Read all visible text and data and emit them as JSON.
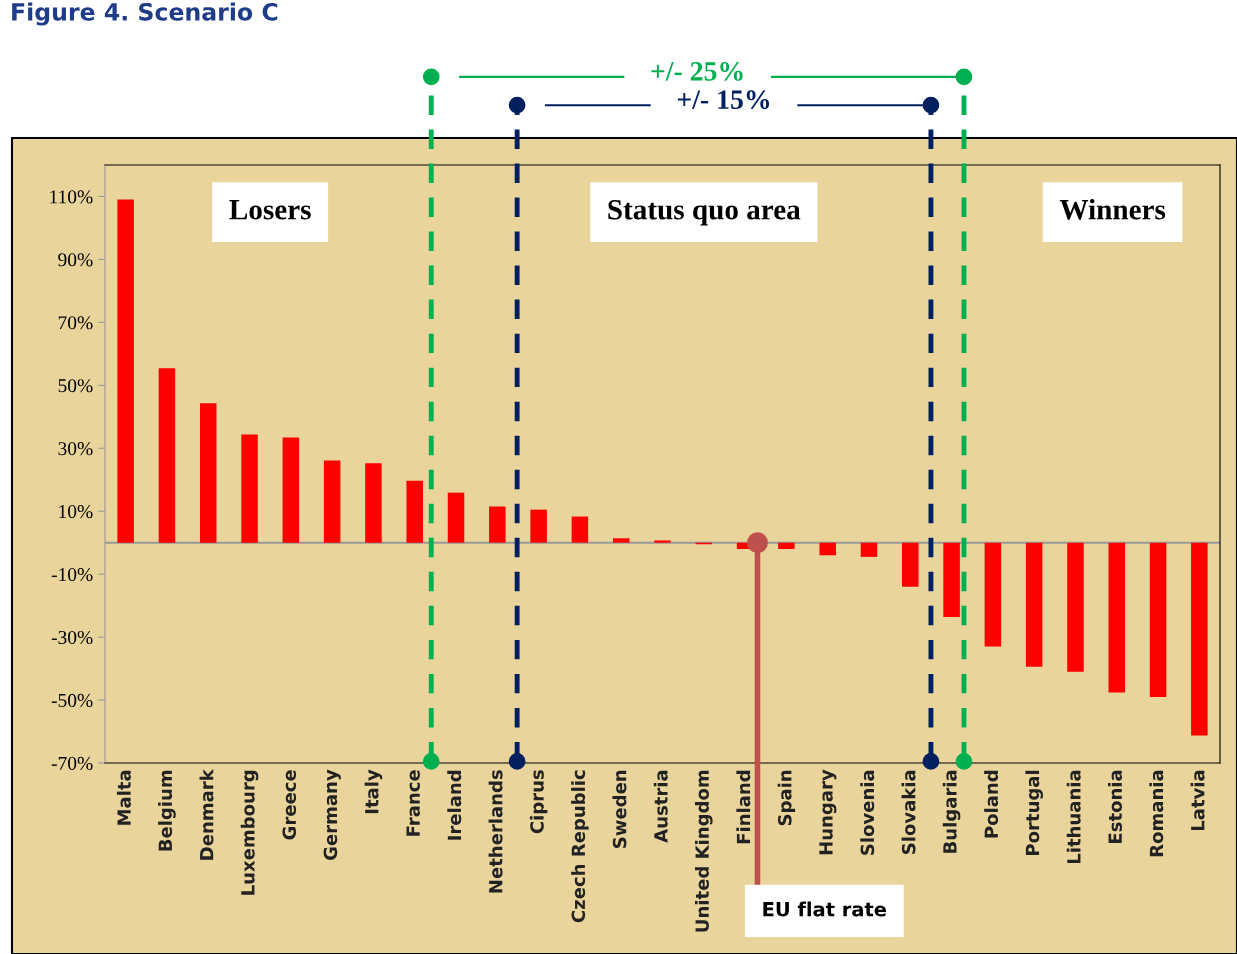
{
  "chart_data": {
    "type": "bar",
    "title": "Figure 4. Scenario C",
    "categories": [
      "Malta",
      "Belgium",
      "Denmark",
      "Luxembourg",
      "Greece",
      "Germany",
      "Italy",
      "France",
      "Ireland",
      "Netherlands",
      "Ciprus",
      "Czech Republic",
      "Sweden",
      "Austria",
      "United Kingdom",
      "Finland",
      "Spain",
      "Hungary",
      "Slovenia",
      "Slovakia",
      "Bulgaria",
      "Poland",
      "Portugal",
      "Lithuania",
      "Estonia",
      "Romania",
      "Latvia"
    ],
    "values": [
      109,
      55.4,
      44.3,
      34.4,
      33.4,
      26.1,
      25.2,
      19.7,
      15.9,
      11.5,
      10.5,
      8.3,
      1.4,
      0.7,
      -0.5,
      -2,
      -2,
      -4,
      -4.5,
      -14,
      -23.6,
      -33,
      -39.4,
      -41,
      -47.6,
      -49,
      -61.3
    ],
    "color": "#ff0000",
    "ylim": [
      -70,
      120
    ],
    "yticks": [
      {
        "value": -70,
        "label": "-70%"
      },
      {
        "value": -50,
        "label": "-50%"
      },
      {
        "value": -30,
        "label": "-30%"
      },
      {
        "value": -10,
        "label": "-10%"
      },
      {
        "value": 10,
        "label": "10%"
      },
      {
        "value": 30,
        "label": "30%"
      },
      {
        "value": 50,
        "label": "50%"
      },
      {
        "value": 70,
        "label": "70%"
      },
      {
        "value": 90,
        "label": "90%"
      },
      {
        "value": 110,
        "label": "110%"
      }
    ],
    "grid": false,
    "annotations": [
      "Losers",
      "Status quo area",
      "Winners",
      "+/- 25%",
      "+/- 15%",
      "EU flat rate"
    ]
  }
}
